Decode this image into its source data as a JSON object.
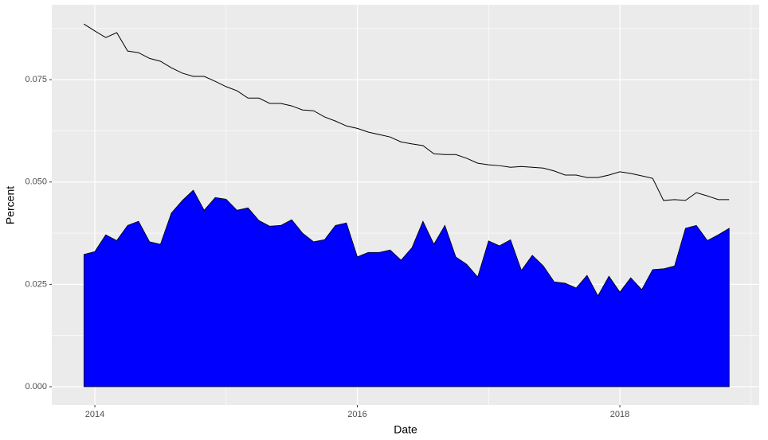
{
  "chart_data": {
    "type": "area",
    "x_label": "Date",
    "y_label": "Percent",
    "x": [
      2013.917,
      2014.0,
      2014.083,
      2014.167,
      2014.25,
      2014.333,
      2014.417,
      2014.5,
      2014.583,
      2014.667,
      2014.75,
      2014.833,
      2014.917,
      2015.0,
      2015.083,
      2015.167,
      2015.25,
      2015.333,
      2015.417,
      2015.5,
      2015.583,
      2015.667,
      2015.75,
      2015.833,
      2015.917,
      2016.0,
      2016.083,
      2016.167,
      2016.25,
      2016.333,
      2016.417,
      2016.5,
      2016.583,
      2016.667,
      2016.75,
      2016.833,
      2016.917,
      2017.0,
      2017.083,
      2017.167,
      2017.25,
      2017.333,
      2017.417,
      2017.5,
      2017.583,
      2017.667,
      2017.75,
      2017.833,
      2017.917,
      2018.0,
      2018.083,
      2018.167,
      2018.25,
      2018.333,
      2018.417,
      2018.5,
      2018.583,
      2018.667,
      2018.75,
      2018.833
    ],
    "series": [
      {
        "type": "area",
        "color": "#0000ff",
        "values": [
          0.0323,
          0.033,
          0.0371,
          0.0357,
          0.0394,
          0.0404,
          0.0354,
          0.0348,
          0.0424,
          0.0455,
          0.048,
          0.0431,
          0.0462,
          0.0458,
          0.0431,
          0.0437,
          0.0406,
          0.0392,
          0.0394,
          0.0408,
          0.0375,
          0.0354,
          0.0359,
          0.0394,
          0.04,
          0.0317,
          0.0328,
          0.0328,
          0.0334,
          0.0309,
          0.034,
          0.0404,
          0.0348,
          0.0394,
          0.0317,
          0.0299,
          0.0268,
          0.0356,
          0.0344,
          0.0359,
          0.0284,
          0.0321,
          0.0295,
          0.0256,
          0.0253,
          0.0241,
          0.0272,
          0.0222,
          0.027,
          0.0231,
          0.0266,
          0.0237,
          0.0286,
          0.0288,
          0.0295,
          0.0387,
          0.0394,
          0.0357,
          0.0371,
          0.0387
        ]
      },
      {
        "type": "line",
        "color": "#000000",
        "values": [
          0.0886,
          0.0869,
          0.0853,
          0.0865,
          0.082,
          0.0816,
          0.0802,
          0.0795,
          0.0779,
          0.0766,
          0.0758,
          0.0758,
          0.0746,
          0.0733,
          0.0723,
          0.0705,
          0.0705,
          0.0692,
          0.0692,
          0.0686,
          0.0676,
          0.0674,
          0.0659,
          0.0649,
          0.0637,
          0.0631,
          0.0622,
          0.0616,
          0.061,
          0.0598,
          0.0593,
          0.0589,
          0.0569,
          0.0567,
          0.0567,
          0.0558,
          0.0546,
          0.0542,
          0.054,
          0.0536,
          0.0538,
          0.0536,
          0.0534,
          0.0527,
          0.0517,
          0.0517,
          0.0511,
          0.0511,
          0.0517,
          0.0525,
          0.0521,
          0.0515,
          0.0509,
          0.0455,
          0.0457,
          0.0455,
          0.0474,
          0.0466,
          0.0457,
          0.0457
        ]
      }
    ],
    "xlim": [
      2013.672,
      2019.062
    ],
    "xticks": [
      2014,
      2016,
      2018
    ],
    "minor_xticks": [
      2015,
      2017,
      2019
    ],
    "ylim": [
      -0.00447,
      0.0933
    ],
    "yticks": [
      {
        "value": 0,
        "label": "0.000"
      },
      0.025,
      {
        "value": 0.05,
        "label": "0.050"
      },
      0.075
    ],
    "minor_yticks": [
      0.0125,
      0.0375,
      0.0625,
      0.0875
    ],
    "grid": true
  }
}
